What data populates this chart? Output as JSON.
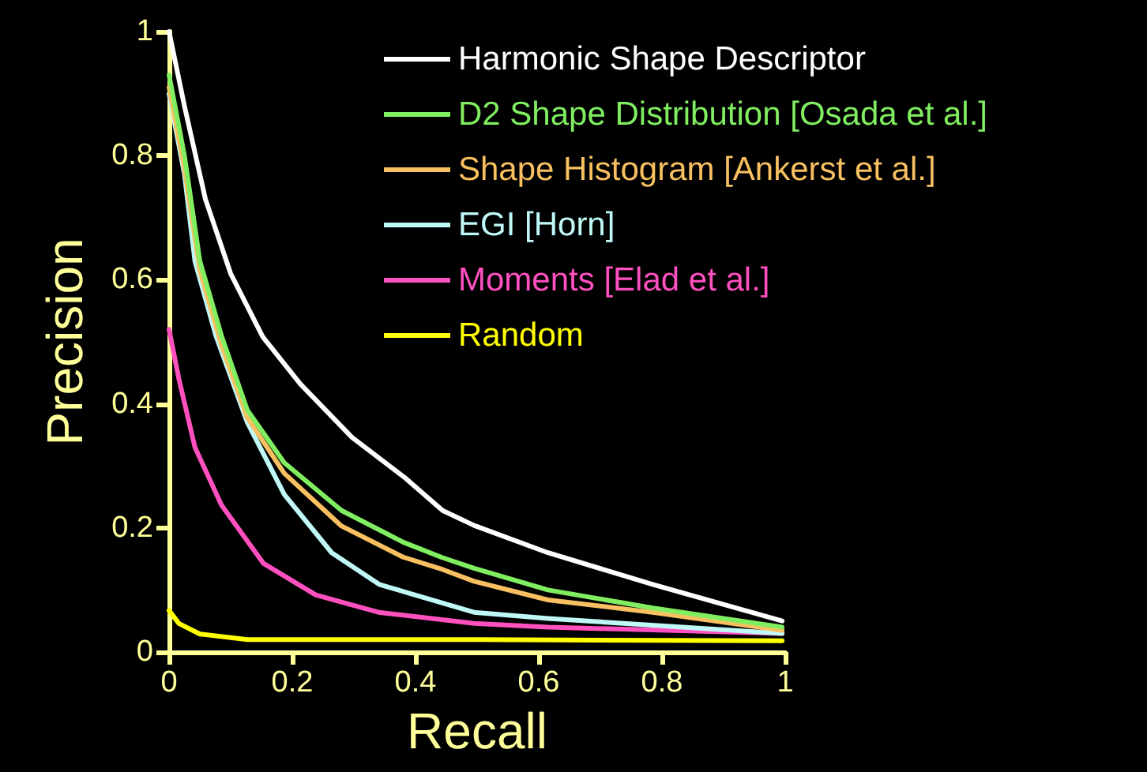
{
  "chart_data": {
    "type": "line",
    "xlabel": "Recall",
    "ylabel": "Precision",
    "xlim": [
      0,
      1
    ],
    "ylim": [
      0,
      1
    ],
    "xticks": [
      0,
      0.2,
      0.4,
      0.6,
      0.8,
      1
    ],
    "yticks": [
      0,
      0.2,
      0.4,
      0.6,
      0.8,
      1
    ],
    "grid": false,
    "legend": "top right",
    "marker": "none",
    "line_style": "solid",
    "series": [
      {
        "name": "Harmonic Shape Descriptor",
        "color": "#ffffff",
        "x": [
          0,
          0.025,
          0.059,
          0.1,
          0.152,
          0.213,
          0.297,
          0.384,
          0.444,
          0.495,
          0.615,
          0.785,
          0.995
        ],
        "values": [
          1,
          0.88,
          0.73,
          0.61,
          0.508,
          0.432,
          0.346,
          0.28,
          0.228,
          0.204,
          0.16,
          0.109,
          0.05
        ]
      },
      {
        "name": "D2 Shape Distribution [Osada et al.]",
        "color": "#80ee60",
        "x": [
          0,
          0.025,
          0.05,
          0.085,
          0.127,
          0.187,
          0.28,
          0.38,
          0.444,
          0.495,
          0.615,
          0.785,
          0.995
        ],
        "values": [
          0.93,
          0.8,
          0.63,
          0.51,
          0.39,
          0.305,
          0.228,
          0.177,
          0.152,
          0.135,
          0.1,
          0.071,
          0.04
        ]
      },
      {
        "name": "Shape Histogram [Ankerst et al.]",
        "color": "#f8c060",
        "x": [
          0,
          0.025,
          0.05,
          0.085,
          0.127,
          0.187,
          0.28,
          0.38,
          0.444,
          0.495,
          0.615,
          0.785,
          0.995
        ],
        "values": [
          0.91,
          0.78,
          0.615,
          0.495,
          0.378,
          0.288,
          0.203,
          0.153,
          0.133,
          0.114,
          0.084,
          0.064,
          0.035
        ]
      },
      {
        "name": "EGI [Horn]",
        "color": "#c0f8f8",
        "x": [
          0,
          0.025,
          0.042,
          0.076,
          0.127,
          0.187,
          0.264,
          0.341,
          0.495,
          0.615,
          0.995
        ],
        "values": [
          0.9,
          0.77,
          0.63,
          0.51,
          0.37,
          0.254,
          0.16,
          0.109,
          0.064,
          0.054,
          0.03
        ]
      },
      {
        "name": "Moments [Elad et al.]",
        "color": "#ff50c0",
        "x": [
          0,
          0.016,
          0.042,
          0.085,
          0.153,
          0.238,
          0.34,
          0.495,
          0.615,
          0.995
        ],
        "values": [
          0.52,
          0.44,
          0.33,
          0.237,
          0.143,
          0.092,
          0.064,
          0.046,
          0.04,
          0.03
        ]
      },
      {
        "name": "Random",
        "color": "#ffff00",
        "x": [
          0,
          0.016,
          0.05,
          0.127,
          0.5,
          0.995
        ],
        "values": [
          0.067,
          0.046,
          0.029,
          0.02,
          0.02,
          0.018
        ]
      }
    ]
  }
}
